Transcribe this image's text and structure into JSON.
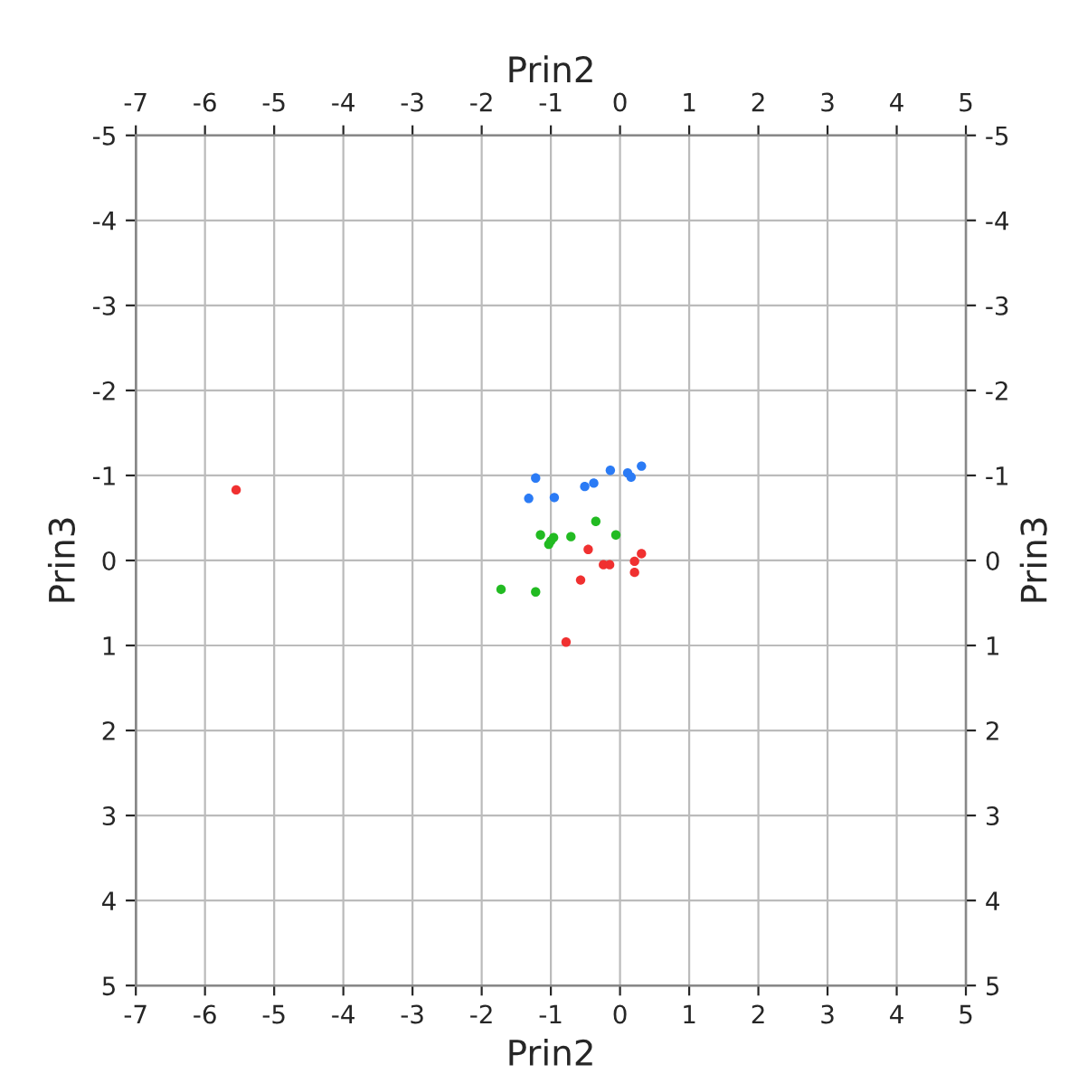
{
  "chart_data": {
    "type": "scatter",
    "xlabel": "Prin2",
    "x2label": "Prin2",
    "ylabel": "Prin3",
    "y2label": "Prin3",
    "xlim": [
      -7,
      5
    ],
    "xticks": [
      -7,
      -6,
      -5,
      -4,
      -3,
      -2,
      -1,
      0,
      1,
      2,
      3,
      4,
      5
    ],
    "x2lim": [
      -7,
      5
    ],
    "x2ticks": [
      -7,
      -6,
      -5,
      -4,
      -3,
      -2,
      -1,
      0,
      1,
      2,
      3,
      4,
      5
    ],
    "ylim": [
      5,
      -5
    ],
    "yticks": [
      -5,
      -4,
      -3,
      -2,
      -1,
      0,
      1,
      2,
      3,
      4,
      5
    ],
    "y2lim": [
      5,
      -5
    ],
    "y2ticks": [
      -5,
      -4,
      -3,
      -2,
      -1,
      0,
      1,
      2,
      3,
      4,
      5
    ],
    "grid": true,
    "marker": "circle",
    "series": [
      {
        "color": "#2b7bf5",
        "x": [
          -1.22,
          -1.32,
          -0.95,
          -0.51,
          -0.38,
          -0.14,
          0.11,
          0.16,
          0.31
        ],
        "values": [
          -0.97,
          -0.73,
          -0.74,
          -0.87,
          -0.91,
          -1.06,
          -1.03,
          -0.98,
          -1.11
        ]
      },
      {
        "color": "#22bb22",
        "x": [
          -0.35,
          -1.15,
          -0.96,
          -1.0,
          -1.03,
          -0.71,
          -0.06,
          -1.72,
          -1.22
        ],
        "values": [
          -0.46,
          -0.3,
          -0.27,
          -0.23,
          -0.19,
          -0.28,
          -0.3,
          0.34,
          0.37
        ]
      },
      {
        "color": "#f03030",
        "x": [
          -0.46,
          0.31,
          0.21,
          -0.24,
          -0.15,
          0.21,
          -0.57,
          -0.78,
          -5.55
        ],
        "values": [
          -0.13,
          -0.08,
          0.01,
          0.05,
          0.05,
          0.14,
          0.23,
          0.96,
          -0.83
        ]
      }
    ]
  }
}
